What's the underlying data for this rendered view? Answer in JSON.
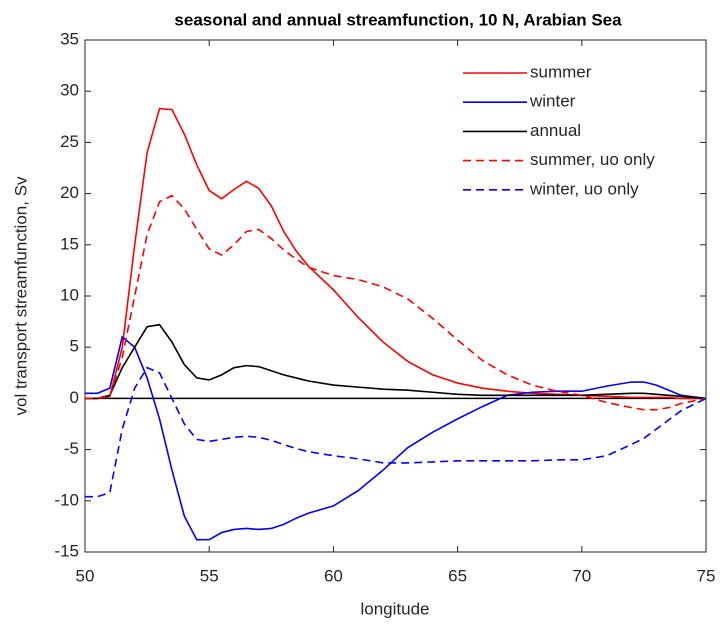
{
  "chart_data": {
    "type": "line",
    "title": "seasonal and annual streamfunction, 10 N, Arabian Sea",
    "x_label": "longitude",
    "y_label": "vol transport streamfunction, Sv",
    "x": [
      50,
      50.5,
      51,
      51.5,
      52,
      52.5,
      53,
      53.5,
      54,
      54.5,
      55,
      55.5,
      56,
      56.5,
      57,
      57.5,
      58,
      58.5,
      59,
      60,
      61,
      62,
      63,
      64,
      65,
      66,
      67,
      68,
      69,
      70,
      71,
      72,
      72.5,
      73,
      73.5,
      74,
      75
    ],
    "series": [
      {
        "name": "summer",
        "color": "#ff0000",
        "dash": false,
        "values": [
          0,
          0,
          0.2,
          5,
          15,
          24,
          28.3,
          28.2,
          25.8,
          22.8,
          20.3,
          19.5,
          20.4,
          21.2,
          20.5,
          18.8,
          16.3,
          14.4,
          12.9,
          10.6,
          7.9,
          5.5,
          3.6,
          2.3,
          1.5,
          1,
          0.7,
          0.5,
          0.4,
          0.3,
          0.2,
          0.1,
          0.1,
          0.1,
          0.1,
          0,
          0
        ]
      },
      {
        "name": "winter",
        "color": "#0000ff",
        "dash": false,
        "values": [
          0.5,
          0.5,
          1,
          6,
          5,
          2,
          -2,
          -7,
          -11.5,
          -13.8,
          -13.8,
          -13.1,
          -12.8,
          -12.7,
          -12.8,
          -12.7,
          -12.3,
          -11.7,
          -11.2,
          -10.5,
          -9,
          -7,
          -4.8,
          -3.3,
          -2,
          -0.8,
          0.3,
          0.6,
          0.7,
          0.7,
          1.2,
          1.6,
          1.6,
          1.3,
          0.8,
          0.3,
          0
        ]
      },
      {
        "name": "annual",
        "color": "#000000",
        "dash": false,
        "values": [
          0,
          0,
          0.3,
          3,
          5,
          7,
          7.2,
          5.5,
          3.3,
          2,
          1.8,
          2.3,
          3,
          3.2,
          3.1,
          2.7,
          2.3,
          2,
          1.7,
          1.3,
          1.1,
          0.9,
          0.8,
          0.6,
          0.4,
          0.3,
          0.3,
          0.3,
          0.3,
          0.3,
          0.4,
          0.5,
          0.5,
          0.4,
          0.3,
          0.2,
          0
        ]
      },
      {
        "name": "summer, uo only",
        "color": "#ff0000",
        "dash": true,
        "values": [
          0,
          0,
          0.2,
          4,
          10,
          16,
          19.2,
          19.8,
          18.5,
          16.5,
          14.6,
          14,
          15,
          16.3,
          16.5,
          15.6,
          14.5,
          13.6,
          12.8,
          12,
          11.6,
          10.9,
          9.7,
          7.8,
          5.7,
          3.7,
          2.3,
          1.3,
          0.7,
          0.3,
          -0.4,
          -0.9,
          -1.1,
          -1.1,
          -0.9,
          -0.5,
          0
        ]
      },
      {
        "name": "winter, uo only",
        "color": "#0000ff",
        "dash": true,
        "values": [
          -9.6,
          -9.6,
          -9.2,
          -3,
          1,
          3,
          2.5,
          0,
          -2.5,
          -4,
          -4.2,
          -4,
          -3.8,
          -3.7,
          -3.8,
          -4.1,
          -4.5,
          -4.9,
          -5.2,
          -5.6,
          -5.9,
          -6.3,
          -6.3,
          -6.2,
          -6.1,
          -6.1,
          -6.1,
          -6.1,
          -6,
          -6,
          -5.6,
          -4.5,
          -3.9,
          -3,
          -2.1,
          -1.2,
          0
        ]
      }
    ],
    "xlim": [
      50,
      75
    ],
    "xticks": [
      50,
      55,
      60,
      65,
      70,
      75
    ],
    "ylim": [
      -15,
      35
    ],
    "yticks": [
      -15,
      -10,
      -5,
      0,
      5,
      10,
      15,
      20,
      25,
      30,
      35
    ],
    "legend": "upper-right"
  }
}
